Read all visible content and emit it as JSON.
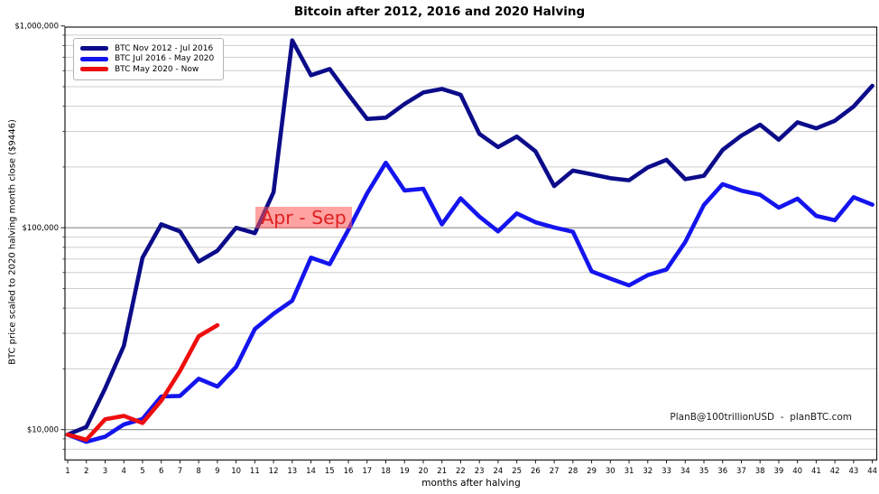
{
  "title": "Bitcoin after 2012, 2016 and 2020 Halving",
  "axes": {
    "y_label": "BTC price scaled to 2020 halving month close ($9446)",
    "x_label": "months after halving",
    "y_tick_labels": [
      "$1,000,000",
      "$100,000",
      "$10,000"
    ],
    "y_tick_values": [
      1000000,
      100000,
      10000
    ],
    "x_ticks": [
      1,
      2,
      3,
      4,
      5,
      6,
      7,
      8,
      9,
      10,
      11,
      12,
      13,
      14,
      15,
      16,
      17,
      18,
      19,
      20,
      21,
      22,
      23,
      24,
      25,
      26,
      27,
      28,
      29,
      30,
      31,
      32,
      33,
      34,
      35,
      36,
      37,
      38,
      39,
      40,
      41,
      42,
      43,
      44
    ]
  },
  "legend": {
    "items": [
      {
        "label": "BTC Nov 2012 - Jul 2016",
        "color": "#0c0c8a"
      },
      {
        "label": "BTC Jul 2016 - May 2020",
        "color": "#1414ee"
      },
      {
        "label": "BTC May 2020 - Now",
        "color": "#ee0e0e"
      }
    ]
  },
  "annotation": {
    "text": "Apr - Sep",
    "text_color": "#e02020",
    "bg_color": "rgba(255,85,85,0.55)"
  },
  "attribution": "PlanB@100trillionUSD  -  planBTC.com",
  "chart_data": {
    "type": "line",
    "title": "Bitcoin after 2012, 2016 and 2020 Halving",
    "xlabel": "months after halving",
    "ylabel": "BTC price scaled to 2020 halving month close ($9446)",
    "y_scale": "log",
    "xlim": [
      1,
      44
    ],
    "ylim": [
      7000,
      1000000
    ],
    "grid": "horizontal log major+minor",
    "legend_position": "upper left",
    "x": [
      1,
      2,
      3,
      4,
      5,
      6,
      7,
      8,
      9,
      10,
      11,
      12,
      13,
      14,
      15,
      16,
      17,
      18,
      19,
      20,
      21,
      22,
      23,
      24,
      25,
      26,
      27,
      28,
      29,
      30,
      31,
      32,
      33,
      34,
      35,
      36,
      37,
      38,
      39,
      40,
      41,
      42,
      43,
      44
    ],
    "series": [
      {
        "name": "BTC Nov 2012 - Jul 2016",
        "color": "#0c0c8a",
        "values": [
          9446,
          10300,
          16000,
          26000,
          71000,
          104000,
          96000,
          68000,
          77000,
          100000,
          94000,
          150000,
          848000,
          570000,
          612000,
          458000,
          346000,
          351000,
          410000,
          468000,
          487000,
          456000,
          292000,
          251000,
          283000,
          239000,
          161000,
          192000,
          184000,
          176000,
          172000,
          199000,
          217000,
          174000,
          181000,
          243000,
          286000,
          324000,
          273000,
          333000,
          311000,
          339000,
          399000,
          505000
        ]
      },
      {
        "name": "BTC Jul 2016 - May 2020",
        "color": "#1414ee",
        "values": [
          9446,
          8700,
          9230,
          10600,
          11280,
          14600,
          14690,
          17870,
          16350,
          20440,
          31500,
          37500,
          43500,
          71100,
          66000,
          97700,
          148000,
          210000,
          153000,
          156000,
          104000,
          139900,
          113600,
          96000,
          117800,
          106500,
          100300,
          95600,
          60800,
          56000,
          51800,
          58300,
          62100,
          85000,
          129800,
          164500,
          152700,
          145800,
          125800,
          139300,
          114600,
          108900,
          141600,
          130200
        ]
      },
      {
        "name": "BTC May 2020 - Now",
        "color": "#ee0e0e",
        "values": [
          9446,
          8900,
          11250,
          11700,
          10780,
          13900,
          19500,
          29000,
          32900
        ]
      }
    ]
  }
}
